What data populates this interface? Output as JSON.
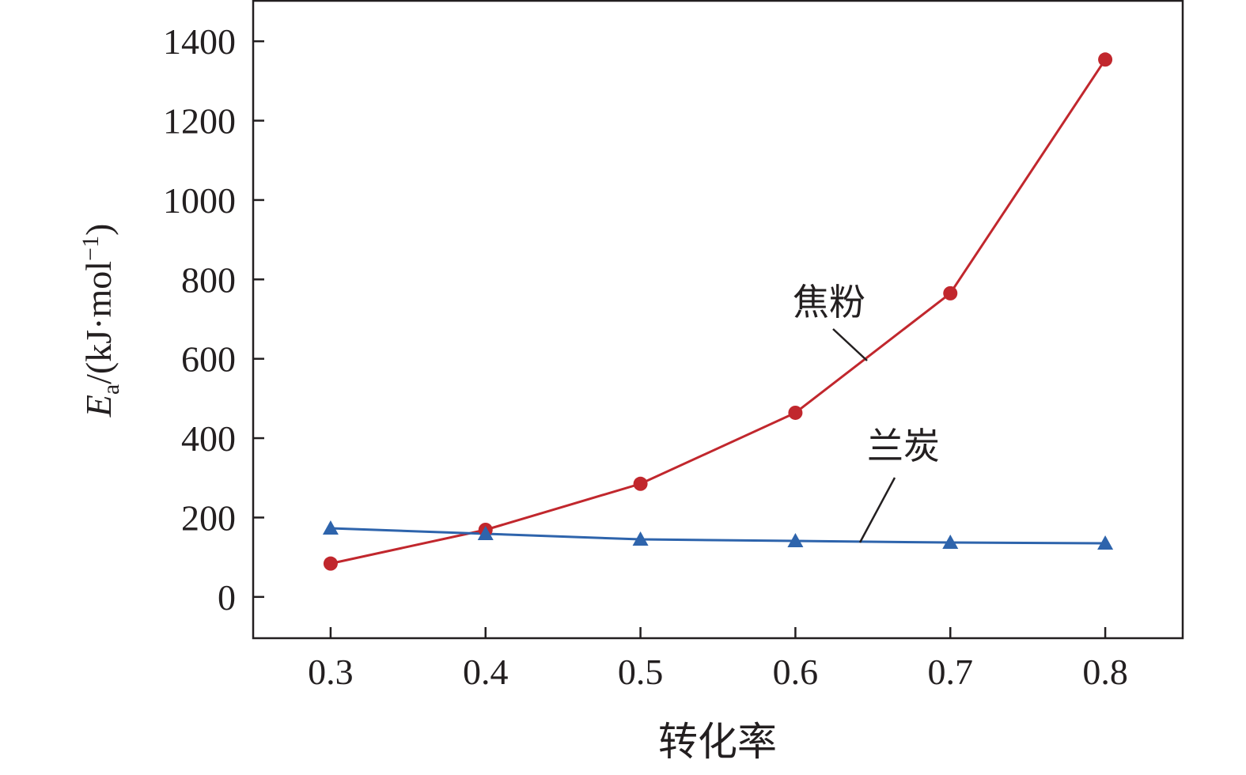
{
  "chart_data": {
    "type": "line",
    "title": "",
    "xlabel": "转化率",
    "ylabel": {
      "symbol": "E",
      "subscript": "a",
      "unit_pre": "/(kJ·mol",
      "unit_sup": "−1",
      "unit_post": ")"
    },
    "xlim": [
      0.25,
      0.85
    ],
    "ylim": [
      -104,
      1502
    ],
    "x_ticks": [
      "0.3",
      "0.4",
      "0.5",
      "0.6",
      "0.7",
      "0.8"
    ],
    "y_ticks": [
      "0",
      "200",
      "400",
      "600",
      "800",
      "1000",
      "1200",
      "1400"
    ],
    "grid": false,
    "x": [
      0.3,
      0.4,
      0.5,
      0.6,
      0.7,
      0.8
    ],
    "series": [
      {
        "name": "焦粉",
        "values": [
          84,
          169,
          285,
          464,
          765,
          1354
        ],
        "color": "#c1272d",
        "marker": "circle"
      },
      {
        "name": "兰炭",
        "values": [
          173,
          159,
          145,
          141,
          137,
          135
        ],
        "color": "#2e64ac",
        "marker": "triangle"
      }
    ]
  }
}
